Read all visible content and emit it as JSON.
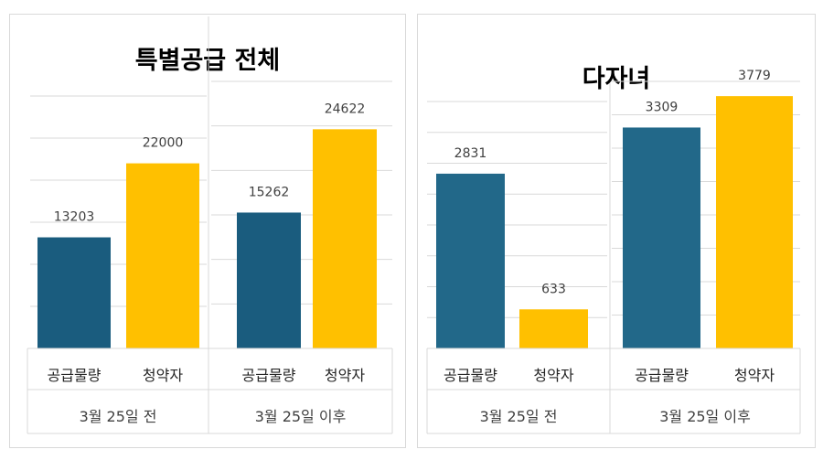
{
  "chart_data": [
    {
      "type": "bar",
      "title": "특별공급 전체",
      "group_axis_label_position": "bottom",
      "groups": [
        {
          "label": "3월 25일 전",
          "categories": [
            "공급물량",
            "청약자"
          ],
          "values": [
            13203,
            22000
          ],
          "ylim": [
            0,
            30000
          ],
          "gridlines": [
            0,
            5000,
            10000,
            15000,
            20000,
            25000,
            30000
          ]
        },
        {
          "label": "3월 25일 이후",
          "categories": [
            "공급물량",
            "청약자"
          ],
          "values": [
            15262,
            24622
          ],
          "ylim": [
            0,
            30000
          ],
          "gridlines": [
            0,
            5000,
            10000,
            15000,
            20000,
            25000,
            30000
          ]
        }
      ],
      "colors": [
        "#1a5c7e",
        "#ffc000"
      ],
      "grid": true
    },
    {
      "type": "bar",
      "title": "다자녀",
      "group_axis_label_position": "bottom",
      "groups": [
        {
          "label": "3월 25일 전",
          "categories": [
            "공급물량",
            "청약자"
          ],
          "values": [
            2831,
            633
          ],
          "ylim": [
            0,
            4000
          ],
          "gridlines": [
            0,
            500,
            1000,
            1500,
            2000,
            2500,
            3000,
            3500,
            4000
          ]
        },
        {
          "label": "3월 25일 이후",
          "categories": [
            "공급물량",
            "청약자"
          ],
          "values": [
            3309,
            3779
          ],
          "ylim": [
            0,
            4000
          ],
          "gridlines": [
            0,
            500,
            1000,
            1500,
            2000,
            2500,
            3000,
            3500,
            4000
          ]
        }
      ],
      "colors": [
        "#226889",
        "#ffc000"
      ],
      "grid": true
    }
  ]
}
